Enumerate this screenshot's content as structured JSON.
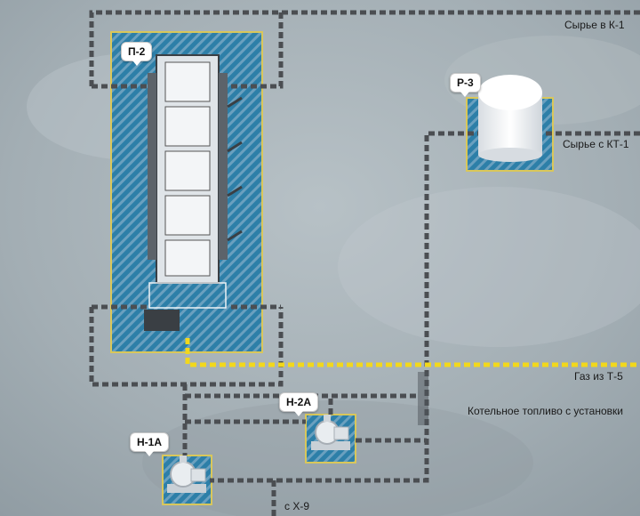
{
  "colors": {
    "background": "#a9b3b9",
    "pipe": "#4b4e52",
    "gas_pipe": "#f2d81c",
    "pad_stripe_a": "#2d7fa8",
    "pad_stripe_b": "#6aa0bf",
    "pad_border": "#d9c75a"
  },
  "equipment": {
    "furnace_tag": "П-2",
    "reactor_tag": "Р-3",
    "pump_1_tag": "Н-1А",
    "pump_2_tag": "Н-2А"
  },
  "lines": {
    "feed_to_k1": "Сырье в К-1",
    "feed_from_kt1": "Сырье с КТ-1",
    "gas_from_t5": "Газ из Т-5",
    "boiler_fuel": "Котельное топливо с установки",
    "from_x9": "с Х-9"
  },
  "icons": {
    "furnace": "furnace-icon",
    "reactor": "tank-icon",
    "pump": "pump-icon"
  }
}
